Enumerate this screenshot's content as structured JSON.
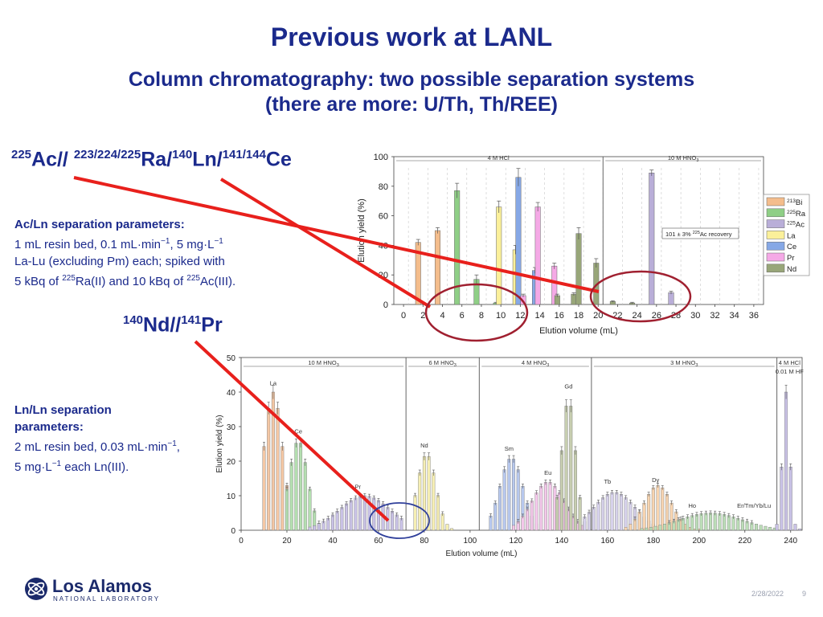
{
  "slide": {
    "title": "Previous work at LANL",
    "subtitle_line1": "Column chromatography: two possible separation systems",
    "subtitle_line2": "(there are more: U/Th, Th/REE)",
    "date": "2/28/2022",
    "page_number": "9"
  },
  "isotopes_top": {
    "m1": "225",
    "t1": "Ac// ",
    "m2": "223/224/225",
    "t2": "Ra/",
    "m3": "140",
    "t3": "Ln/",
    "m4": "141/144",
    "t4": "Ce"
  },
  "ac_ln_params": {
    "heading": "Ac/Ln separation  parameters:",
    "line1": "1 mL resin bed, 0.1 mL·min",
    "line1_sup1": "−1",
    "line1_b": ", 5 mg·L",
    "line1_sup2": "−1",
    "line2": "La-Lu (excluding Pm) each; spiked with",
    "line3a": "5 kBq of ",
    "line3_sup1": "225",
    "line3b": "Ra(II) and 10 kBq of ",
    "line3_sup2": "225",
    "line3c": "Ac(III)."
  },
  "isotopes_mid": {
    "m1": "140",
    "t1": "Nd//",
    "m2": "141",
    "t2": "Pr"
  },
  "ln_ln_params": {
    "heading1": "Ln/Ln separation",
    "heading2": "parameters:",
    "line1": "2 mL resin bed, 0.03 mL·min",
    "line1_sup": "−1",
    "line1_b": ",",
    "line2a": "5 mg·L",
    "line2_sup": "−1",
    "line2b": " each Ln(III)."
  },
  "logo": {
    "name": "Los Alamos",
    "sub": "NATIONAL LABORATORY"
  },
  "chart_data": [
    {
      "type": "bar",
      "xlabel": "Elution volume (mL)",
      "ylabel": "Elution yield (%)",
      "xlim": [
        -1,
        37
      ],
      "ylim": [
        0,
        100
      ],
      "xticks": [
        0,
        2,
        4,
        6,
        8,
        10,
        12,
        14,
        16,
        18,
        20,
        22,
        24,
        26,
        28,
        30,
        32,
        34,
        36
      ],
      "yticks": [
        0,
        20,
        40,
        60,
        80,
        100
      ],
      "regions": [
        {
          "label": "4 M HCl",
          "from": -1,
          "to": 20.5
        },
        {
          "label": "10 M HNO",
          "label_sub": "3",
          "from": 20.5,
          "to": 37
        }
      ],
      "annotation": {
        "text": "101 ± 3% ",
        "sup": "225",
        "text2": "Ac recovery"
      },
      "legend": [
        "213Bi",
        "225Ra",
        "225Ac",
        "La",
        "Ce",
        "Pr",
        "Nd"
      ],
      "legend_mass": [
        "213",
        "225",
        "225",
        "",
        "",
        "",
        ""
      ],
      "legend_sym": [
        "Bi",
        "Ra",
        "Ac",
        "La",
        "Ce",
        "Pr",
        "Nd"
      ],
      "legend_colors": [
        "#f4bd8c",
        "#8fcf86",
        "#b9aed8",
        "#fbf09a",
        "#86a8e6",
        "#f5a9e6",
        "#98a679"
      ],
      "legend_placement": "right",
      "bars": [
        {
          "x": 1.5,
          "value": 42,
          "err": 2,
          "color": "#f4bd8c"
        },
        {
          "x": 3.5,
          "value": 50,
          "err": 2,
          "color": "#f4bd8c"
        },
        {
          "x": 5.5,
          "value": 77,
          "err": 5,
          "color": "#8fcf86"
        },
        {
          "x": 7.5,
          "value": 17,
          "err": 3,
          "color": "#8fcf86"
        },
        {
          "x": 9.5,
          "value": 1,
          "err": 0.5,
          "color": "#8fcf86"
        },
        {
          "x": 9.8,
          "value": 66,
          "err": 4,
          "color": "#fbf09a"
        },
        {
          "x": 11.5,
          "value": 37,
          "err": 3,
          "color": "#fbf09a"
        },
        {
          "x": 11.8,
          "value": 86,
          "err": 6,
          "color": "#86a8e6"
        },
        {
          "x": 12.3,
          "value": 6,
          "err": 1,
          "color": "#f5a9e6"
        },
        {
          "x": 13.5,
          "value": 23,
          "err": 2,
          "color": "#86a8e6"
        },
        {
          "x": 13.8,
          "value": 66,
          "err": 3,
          "color": "#f5a9e6"
        },
        {
          "x": 15.5,
          "value": 26,
          "err": 2,
          "color": "#f5a9e6"
        },
        {
          "x": 15.8,
          "value": 6,
          "err": 1,
          "color": "#98a679"
        },
        {
          "x": 17.5,
          "value": 7,
          "err": 1,
          "color": "#98a679"
        },
        {
          "x": 18.0,
          "value": 48,
          "err": 4,
          "color": "#98a679"
        },
        {
          "x": 19.8,
          "value": 28,
          "err": 3,
          "color": "#98a679"
        },
        {
          "x": 21.5,
          "value": 2,
          "err": 0.5,
          "color": "#98a679"
        },
        {
          "x": 23.5,
          "value": 1,
          "err": 0.5,
          "color": "#98a679"
        },
        {
          "x": 25.5,
          "value": 89,
          "err": 2,
          "color": "#b9aed8"
        },
        {
          "x": 27.5,
          "value": 8,
          "err": 1,
          "color": "#b9aed8"
        }
      ]
    },
    {
      "type": "bar",
      "xlabel": "Elution volume (mL)",
      "ylabel": "Elution yield (%)",
      "xlim": [
        0,
        245
      ],
      "ylim": [
        0,
        50
      ],
      "xticks": [
        0,
        20,
        40,
        60,
        80,
        100,
        120,
        140,
        160,
        180,
        200,
        220,
        240
      ],
      "yticks": [
        0,
        10,
        20,
        30,
        40,
        50
      ],
      "regions": [
        {
          "label": "10 M HNO",
          "label_sub": "3",
          "from": 0,
          "to": 72
        },
        {
          "label": "6 M HNO",
          "label_sub": "3",
          "from": 72,
          "to": 104
        },
        {
          "label": "4 M HNO",
          "label_sub": "3",
          "from": 104,
          "to": 153
        },
        {
          "label": "3 M HNO",
          "label_sub": "3",
          "from": 153,
          "to": 234
        },
        {
          "label": "4 M HCl",
          "label2": "0.01 M HF",
          "from": 234,
          "to": 245
        }
      ],
      "peak_labels": [
        {
          "text": "La",
          "x": 14,
          "y": 42
        },
        {
          "text": "Ce",
          "x": 25,
          "y": 28
        },
        {
          "text": "Pr",
          "x": 51,
          "y": 12
        },
        {
          "text": "Nd",
          "x": 80,
          "y": 24
        },
        {
          "text": "Sm",
          "x": 117,
          "y": 23
        },
        {
          "text": "Gd",
          "x": 143,
          "y": 41
        },
        {
          "text": "Eu",
          "x": 134,
          "y": 16
        },
        {
          "text": "Tb",
          "x": 160,
          "y": 13.5
        },
        {
          "text": "Dy",
          "x": 181,
          "y": 14
        },
        {
          "text": "Ho",
          "x": 197,
          "y": 6.5
        },
        {
          "text": "Er/Tm/Yb/Lu",
          "x": 224,
          "y": 6.5
        }
      ],
      "series": [
        {
          "name": "La",
          "color": "#f4c7a4",
          "center": 14,
          "width": 4,
          "height": 40,
          "start": 10,
          "end": 20
        },
        {
          "name": "Ce",
          "color": "#b4dfb0",
          "center": 25,
          "width": 4,
          "height": 26,
          "start": 20,
          "end": 35
        },
        {
          "name": "Pr",
          "color": "#c9c2e6",
          "center": 54,
          "width": 11,
          "height": 10,
          "start": 30,
          "end": 70
        },
        {
          "name": "Nd",
          "color": "#f6efb4",
          "center": 81,
          "width": 4,
          "height": 22,
          "start": 76,
          "end": 92
        },
        {
          "name": "Sm",
          "color": "#b7c8ee",
          "center": 118,
          "width": 5,
          "height": 21,
          "start": 109,
          "end": 130
        },
        {
          "name": "Eu",
          "color": "#f3c7ea",
          "center": 134,
          "width": 7,
          "height": 14,
          "start": 119,
          "end": 150
        },
        {
          "name": "Gd",
          "color": "#c7ceb0",
          "center": 143,
          "width": 3,
          "height": 38,
          "start": 138,
          "end": 152
        },
        {
          "name": "Tb",
          "color": "#d6d1eb",
          "center": 163,
          "width": 9,
          "height": 11,
          "start": 150,
          "end": 190
        },
        {
          "name": "Dy",
          "color": "#f7d4b0",
          "center": 182,
          "width": 6,
          "height": 13,
          "start": 168,
          "end": 200
        },
        {
          "name": "Ho",
          "color": "#bcdeb8",
          "center": 205,
          "width": 14,
          "height": 5,
          "start": 175,
          "end": 234
        },
        {
          "name": "Er/Tm/Yb/Lu",
          "color": "#c9c2e6",
          "center": 238,
          "width": 1.6,
          "height": 40,
          "start": 234,
          "end": 245
        }
      ]
    }
  ]
}
